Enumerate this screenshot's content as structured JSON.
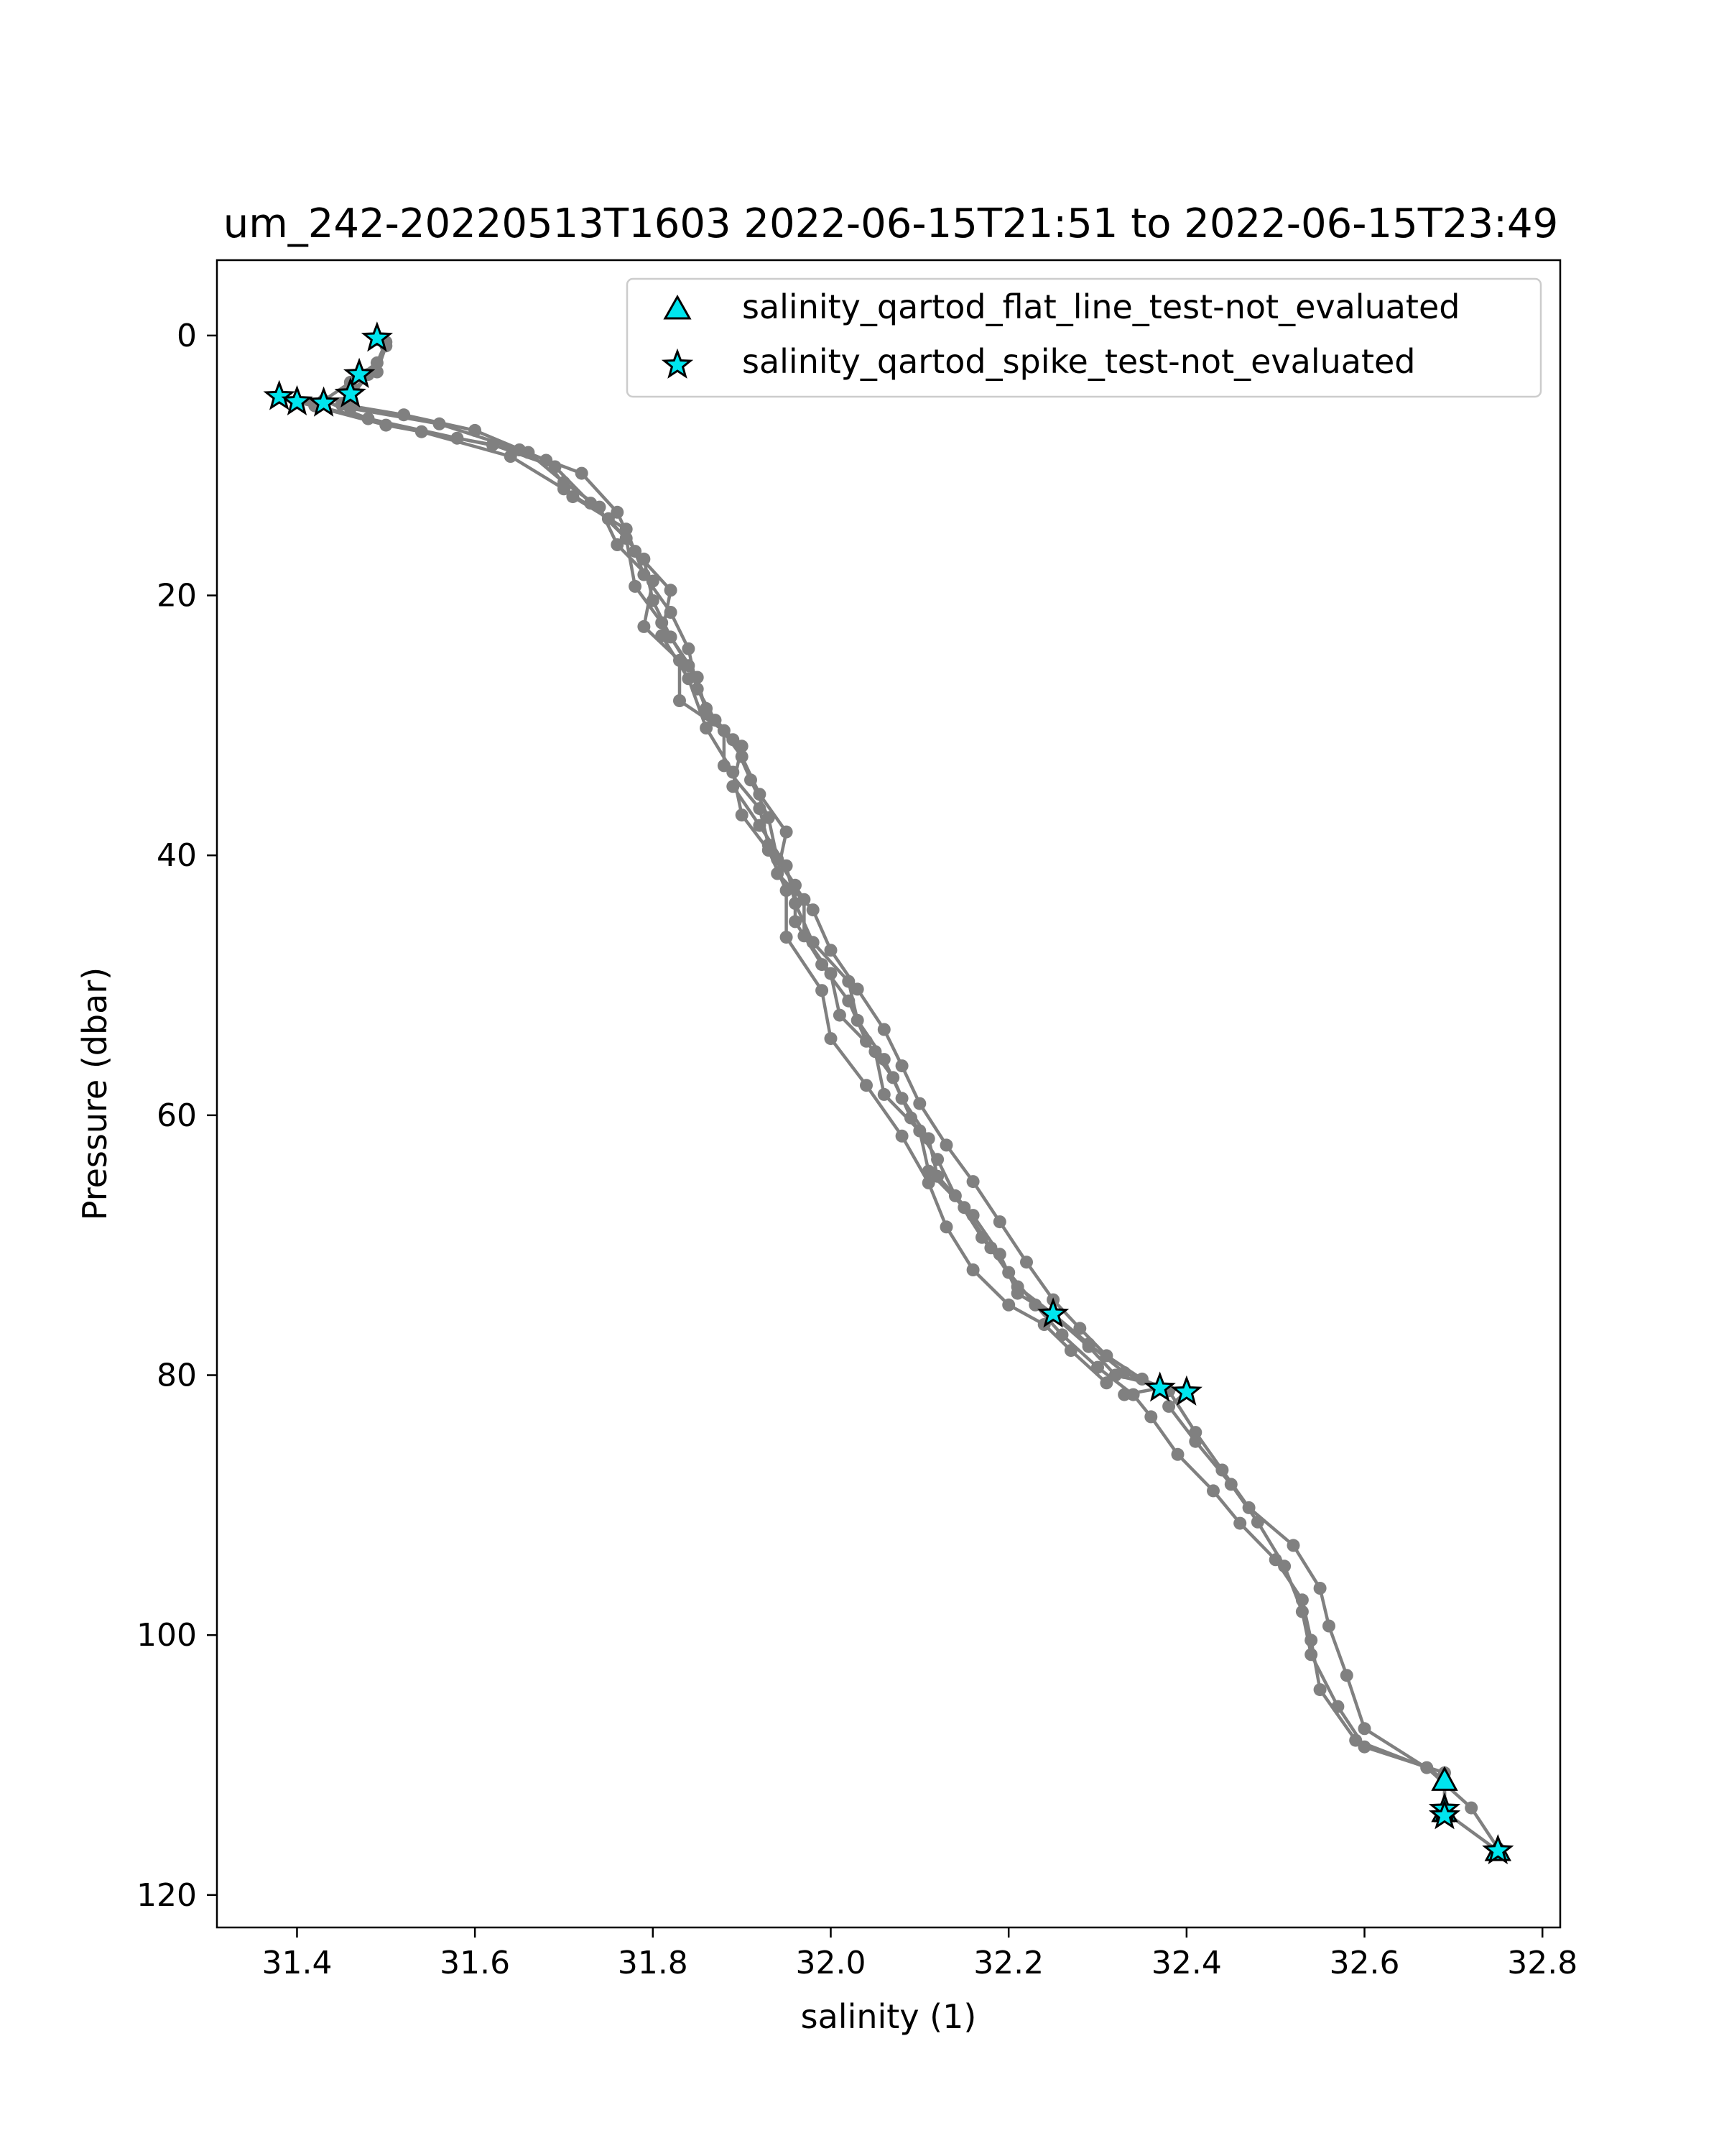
{
  "chart_data": {
    "type": "scatter",
    "title": "um_242-20220513T1603 2022-06-15T21:51 to 2022-06-15T23:49",
    "xlabel": "salinity (1)",
    "ylabel": "Pressure (dbar)",
    "xlim": [
      31.31,
      32.82
    ],
    "ylim": [
      122.5,
      -5.8
    ],
    "y_inverted": true,
    "grid": false,
    "legend_position": "top-right",
    "x_ticks": [
      "31.4",
      "31.6",
      "31.8",
      "32.0",
      "32.2",
      "32.4",
      "32.6",
      "32.8"
    ],
    "y_ticks": [
      "0",
      "20",
      "40",
      "60",
      "80",
      "100",
      "120"
    ],
    "profile_color": "#808080",
    "marker_color": "#00e5ee",
    "profile_series": [
      {
        "points": [
          [
            31.49,
            0.3
          ],
          [
            31.5,
            0.8
          ],
          [
            31.49,
            2.8
          ],
          [
            31.46,
            4.2
          ],
          [
            31.45,
            5.3
          ],
          [
            31.52,
            6.1
          ],
          [
            31.6,
            7.3
          ],
          [
            31.68,
            9.6
          ],
          [
            31.71,
            12.4
          ],
          [
            31.77,
            14.9
          ],
          [
            31.79,
            18.4
          ],
          [
            31.82,
            21.3
          ],
          [
            31.84,
            24.1
          ],
          [
            31.85,
            27.2
          ],
          [
            31.87,
            29.6
          ],
          [
            31.9,
            32.4
          ],
          [
            31.92,
            35.3
          ],
          [
            31.95,
            38.2
          ],
          [
            31.94,
            41.4
          ],
          [
            31.98,
            44.2
          ],
          [
            32.0,
            47.3
          ],
          [
            32.03,
            50.3
          ],
          [
            32.06,
            53.4
          ],
          [
            32.08,
            56.2
          ],
          [
            32.1,
            59.1
          ],
          [
            32.13,
            62.3
          ],
          [
            32.16,
            65.1
          ],
          [
            32.19,
            68.2
          ],
          [
            32.22,
            71.3
          ],
          [
            32.25,
            74.2
          ],
          [
            32.28,
            76.4
          ],
          [
            32.31,
            78.5
          ],
          [
            32.35,
            80.3
          ],
          [
            32.38,
            81.2
          ],
          [
            32.41,
            84.4
          ],
          [
            32.44,
            87.3
          ],
          [
            32.47,
            90.2
          ],
          [
            32.52,
            93.1
          ],
          [
            32.55,
            96.4
          ],
          [
            32.56,
            99.3
          ],
          [
            32.58,
            103.1
          ],
          [
            32.6,
            107.2
          ],
          [
            32.69,
            111.1
          ],
          [
            32.69,
            113.6
          ],
          [
            32.75,
            116.6
          ]
        ]
      },
      {
        "points": [
          [
            31.5,
            0.5
          ],
          [
            31.49,
            2.1
          ],
          [
            31.46,
            3.6
          ],
          [
            31.43,
            5.0
          ],
          [
            31.48,
            6.4
          ],
          [
            31.58,
            7.9
          ],
          [
            31.66,
            9.0
          ],
          [
            31.7,
            11.3
          ],
          [
            31.74,
            13.2
          ],
          [
            31.76,
            16.1
          ],
          [
            31.8,
            18.9
          ],
          [
            31.79,
            22.4
          ],
          [
            31.83,
            25.0
          ],
          [
            31.83,
            28.1
          ],
          [
            31.88,
            30.4
          ],
          [
            31.88,
            33.1
          ],
          [
            31.92,
            36.4
          ],
          [
            31.93,
            39.2
          ],
          [
            31.96,
            42.3
          ],
          [
            31.96,
            45.1
          ],
          [
            31.99,
            48.4
          ],
          [
            32.02,
            51.2
          ],
          [
            32.04,
            54.3
          ],
          [
            32.07,
            57.1
          ],
          [
            32.09,
            60.2
          ],
          [
            32.12,
            63.4
          ],
          [
            32.14,
            66.2
          ],
          [
            32.17,
            69.4
          ],
          [
            32.2,
            72.1
          ],
          [
            32.23,
            74.6
          ],
          [
            32.26,
            76.9
          ],
          [
            32.3,
            79.4
          ],
          [
            32.34,
            81.5
          ],
          [
            32.36,
            83.2
          ],
          [
            32.39,
            86.1
          ],
          [
            32.43,
            88.9
          ],
          [
            32.46,
            91.4
          ],
          [
            32.5,
            94.2
          ],
          [
            32.53,
            97.3
          ],
          [
            32.54,
            100.4
          ],
          [
            32.55,
            104.2
          ],
          [
            32.59,
            108.1
          ],
          [
            32.67,
            110.2
          ],
          [
            32.72,
            113.3
          ],
          [
            32.75,
            116.4
          ]
        ]
      },
      {
        "points": [
          [
            31.48,
            3.0
          ],
          [
            31.46,
            4.8
          ],
          [
            31.4,
            5.1
          ],
          [
            31.5,
            6.9
          ],
          [
            31.62,
            8.4
          ],
          [
            31.69,
            10.1
          ],
          [
            31.73,
            12.9
          ],
          [
            31.77,
            15.6
          ],
          [
            31.78,
            19.3
          ],
          [
            31.81,
            22.1
          ],
          [
            31.84,
            25.4
          ],
          [
            31.86,
            28.7
          ],
          [
            31.89,
            31.1
          ],
          [
            31.91,
            34.2
          ],
          [
            31.93,
            37.1
          ],
          [
            31.94,
            40.3
          ],
          [
            31.97,
            43.4
          ],
          [
            31.97,
            46.2
          ],
          [
            32.0,
            49.1
          ],
          [
            32.01,
            52.3
          ],
          [
            32.05,
            55.1
          ],
          [
            32.06,
            58.4
          ],
          [
            32.1,
            61.2
          ],
          [
            32.11,
            64.3
          ],
          [
            32.15,
            67.1
          ],
          [
            32.18,
            70.2
          ],
          [
            32.21,
            73.2
          ],
          [
            32.25,
            75.3
          ],
          [
            32.29,
            77.6
          ],
          [
            32.33,
            79.8
          ],
          [
            32.37,
            81.0
          ],
          [
            32.33,
            81.5
          ]
        ]
      },
      {
        "points": [
          [
            31.38,
            4.7
          ],
          [
            31.42,
            5.4
          ],
          [
            31.54,
            7.4
          ],
          [
            31.64,
            9.3
          ],
          [
            31.7,
            11.8
          ],
          [
            31.75,
            14.1
          ],
          [
            31.79,
            17.2
          ],
          [
            31.8,
            20.4
          ],
          [
            31.82,
            23.2
          ],
          [
            31.85,
            26.3
          ],
          [
            31.86,
            29.1
          ],
          [
            31.9,
            31.6
          ],
          [
            31.89,
            34.7
          ],
          [
            31.92,
            37.7
          ],
          [
            31.95,
            40.8
          ],
          [
            31.96,
            43.7
          ],
          [
            31.98,
            46.7
          ],
          [
            32.02,
            49.7
          ],
          [
            32.03,
            52.7
          ],
          [
            32.06,
            55.7
          ],
          [
            32.08,
            58.7
          ],
          [
            32.11,
            61.8
          ],
          [
            32.12,
            64.7
          ],
          [
            32.16,
            67.7
          ],
          [
            32.19,
            70.7
          ],
          [
            32.21,
            73.7
          ],
          [
            32.25,
            75.4
          ],
          [
            32.29,
            77.8
          ],
          [
            32.32,
            80.0
          ],
          [
            32.4,
            81.3
          ],
          [
            32.38,
            82.4
          ],
          [
            32.41,
            85.1
          ],
          [
            32.45,
            88.4
          ],
          [
            32.48,
            91.3
          ],
          [
            32.51,
            94.7
          ],
          [
            32.53,
            98.2
          ],
          [
            32.54,
            101.5
          ],
          [
            32.57,
            105.5
          ],
          [
            32.6,
            108.6
          ],
          [
            32.69,
            110.6
          ],
          [
            32.69,
            113.9
          ]
        ]
      },
      {
        "points": [
          [
            31.46,
            5.6
          ],
          [
            31.56,
            6.8
          ],
          [
            31.65,
            8.8
          ],
          [
            31.72,
            10.6
          ],
          [
            31.76,
            13.6
          ],
          [
            31.78,
            16.6
          ],
          [
            31.82,
            19.6
          ],
          [
            31.81,
            23.1
          ],
          [
            31.84,
            26.4
          ],
          [
            31.86,
            30.2
          ],
          [
            31.89,
            33.6
          ],
          [
            31.9,
            36.9
          ],
          [
            31.93,
            39.6
          ],
          [
            31.95,
            42.7
          ],
          [
            31.95,
            46.3
          ],
          [
            31.99,
            50.4
          ],
          [
            32.0,
            54.1
          ],
          [
            32.04,
            57.7
          ],
          [
            32.08,
            61.6
          ],
          [
            32.11,
            65.2
          ],
          [
            32.13,
            68.6
          ],
          [
            32.16,
            71.9
          ],
          [
            32.2,
            74.6
          ],
          [
            32.24,
            76.1
          ],
          [
            32.27,
            78.1
          ],
          [
            32.31,
            80.6
          ]
        ]
      }
    ],
    "flat_line_flags": {
      "label": "salinity_qartod_flat_line_test-not_evaluated",
      "marker": "triangle",
      "points": [
        [
          32.69,
          111.2
        ],
        [
          32.69,
          113.6
        ],
        [
          32.75,
          116.6
        ]
      ]
    },
    "spike_flags": {
      "label": "salinity_qartod_spike_test-not_evaluated",
      "marker": "star",
      "points": [
        [
          31.49,
          0.2
        ],
        [
          31.47,
          3.0
        ],
        [
          31.46,
          4.5
        ],
        [
          31.38,
          4.7
        ],
        [
          31.4,
          5.1
        ],
        [
          31.43,
          5.2
        ],
        [
          32.25,
          75.3
        ],
        [
          32.37,
          81.0
        ],
        [
          32.4,
          81.3
        ],
        [
          32.69,
          113.4
        ],
        [
          32.69,
          113.9
        ],
        [
          32.75,
          116.6
        ]
      ]
    }
  }
}
